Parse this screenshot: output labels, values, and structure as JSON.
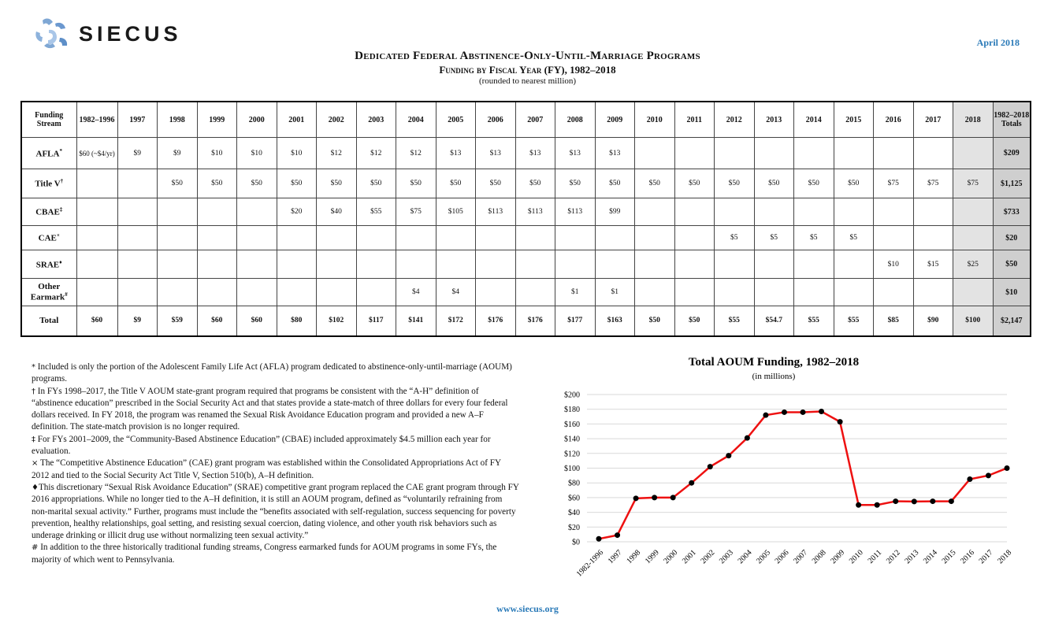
{
  "header": {
    "logo_text": "SIECUS",
    "date": "April 2018",
    "title": "Dedicated Federal Abstinence-Only-Until-Marriage Programs",
    "subtitle": "Funding by Fiscal Year (FY), 1982–2018",
    "note": "(rounded to nearest million)"
  },
  "table": {
    "corner": "Funding Stream",
    "years": [
      "1982–1996",
      "1997",
      "1998",
      "1999",
      "2000",
      "2001",
      "2002",
      "2003",
      "2004",
      "2005",
      "2006",
      "2007",
      "2008",
      "2009",
      "2010",
      "2011",
      "2012",
      "2013",
      "2014",
      "2015",
      "2016",
      "2017",
      "2018",
      "1982–2018 Totals"
    ],
    "rows": [
      {
        "label": "AFLA",
        "mark": "*",
        "cells": [
          "$60 (~$4/yr)",
          "$9",
          "$9",
          "$10",
          "$10",
          "$10",
          "$12",
          "$12",
          "$12",
          "$13",
          "$13",
          "$13",
          "$13",
          "$13",
          "",
          "",
          "",
          "",
          "",
          "",
          "",
          "",
          "",
          "$209"
        ]
      },
      {
        "label": "Title V",
        "mark": "†",
        "cells": [
          "",
          "",
          "$50",
          "$50",
          "$50",
          "$50",
          "$50",
          "$50",
          "$50",
          "$50",
          "$50",
          "$50",
          "$50",
          "$50",
          "$50",
          "$50",
          "$50",
          "$50",
          "$50",
          "$50",
          "$75",
          "$75",
          "$75",
          "$1,125"
        ]
      },
      {
        "label": "CBAE",
        "mark": "‡",
        "cells": [
          "",
          "",
          "",
          "",
          "",
          "$20",
          "$40",
          "$55",
          "$75",
          "$105",
          "$113",
          "$113",
          "$113",
          "$99",
          "",
          "",
          "",
          "",
          "",
          "",
          "",
          "",
          "",
          "$733"
        ]
      },
      {
        "label": "CAE",
        "mark": "×",
        "cells": [
          "",
          "",
          "",
          "",
          "",
          "",
          "",
          "",
          "",
          "",
          "",
          "",
          "",
          "",
          "",
          "",
          "$5",
          "$5",
          "$5",
          "$5",
          "",
          "",
          "",
          "$20"
        ]
      },
      {
        "label": "SRAE",
        "mark": "♦",
        "cells": [
          "",
          "",
          "",
          "",
          "",
          "",
          "",
          "",
          "",
          "",
          "",
          "",
          "",
          "",
          "",
          "",
          "",
          "",
          "",
          "",
          "$10",
          "$15",
          "$25",
          "$50"
        ]
      },
      {
        "label": "Other Earmark",
        "mark": "#",
        "cells": [
          "",
          "",
          "",
          "",
          "",
          "",
          "",
          "",
          "$4",
          "$4",
          "",
          "",
          "$1",
          "$1",
          "",
          "",
          "",
          "",
          "",
          "",
          "",
          "",
          "",
          "$10"
        ]
      },
      {
        "label": "Total",
        "mark": "",
        "cells": [
          "$60",
          "$9",
          "$59",
          "$60",
          "$60",
          "$80",
          "$102",
          "$117",
          "$141",
          "$172",
          "$176",
          "$176",
          "$177",
          "$163",
          "$50",
          "$50",
          "$55",
          "$54.7",
          "$55",
          "$55",
          "$85",
          "$90",
          "$100",
          "$2,147"
        ]
      }
    ]
  },
  "notes": [
    {
      "sym": "*",
      "text": " Included is only the portion of the Adolescent Family Life Act (AFLA) program dedicated to abstinence-only-until-marriage (AOUM) programs."
    },
    {
      "sym": "†",
      "text": " In FYs 1998–2017, the Title V AOUM state-grant program required that programs be consistent with the “A-H” definition of “abstinence education” prescribed in the Social Security Act and that states provide a state-match of three dollars for every four federal dollars received. In FY 2018, the program was renamed the Sexual Risk Avoidance Education program and provided a new A–F definition. The state-match provision is no longer required."
    },
    {
      "sym": "‡",
      "text": " For FYs 2001–2009, the “Community-Based Abstinence Education” (CBAE) included approximately $4.5 million each year for evaluation."
    },
    {
      "sym": "×",
      "text": " The “Competitive Abstinence Education” (CAE) grant program was established within the Consolidated Appropriations Act of FY 2012 and tied to the Social Security Act Title V, Section 510(b), A–H definition."
    },
    {
      "sym": "♦",
      "text": "This discretionary “Sexual Risk Avoidance Education” (SRAE) competitive grant program replaced the CAE grant program through FY 2016 appropriations. While no longer tied to the A–H definition, it is still an AOUM program, defined as “voluntarily refraining from non-marital sexual activity.” Further, programs must include the “benefits associated with self-regulation, success sequencing for poverty prevention, healthy relationships, goal setting, and resisting sexual coercion, dating violence, and other youth risk behaviors such as underage drinking or illicit drug use without normalizing teen sexual activity.”"
    },
    {
      "sym": "#",
      "text": " In addition to the three historically traditional funding streams, Congress earmarked funds for AOUM programs in some FYs, the majority of which went to Pennsylvania."
    }
  ],
  "chart_data": {
    "type": "line",
    "title": "Total AOUM Funding, 1982–2018",
    "subtitle": "(in millions)",
    "categories": [
      "1982-1996",
      "1997",
      "1998",
      "1999",
      "2000",
      "2001",
      "2002",
      "2003",
      "2004",
      "2005",
      "2006",
      "2007",
      "2008",
      "2009",
      "2010",
      "2011",
      "2012",
      "2013",
      "2014",
      "2015",
      "2016",
      "2017",
      "2018"
    ],
    "values": [
      4,
      9,
      59,
      60,
      60,
      80,
      102,
      117,
      141,
      172,
      176,
      176,
      177,
      163,
      50,
      50,
      55,
      54.7,
      55,
      55,
      85,
      90,
      100
    ],
    "ylim": [
      0,
      200
    ],
    "yticks": [
      "$0",
      "$20",
      "$40",
      "$60",
      "$80",
      "$100",
      "$120",
      "$140",
      "$160",
      "$180",
      "$200"
    ],
    "grid": true,
    "colors": {
      "line": "#ee1111",
      "marker": "#000000",
      "grid": "#d9d9d9"
    }
  },
  "footer": {
    "url": "www.siecus.org"
  },
  "colors": {
    "accent": "#2a7ab8"
  }
}
